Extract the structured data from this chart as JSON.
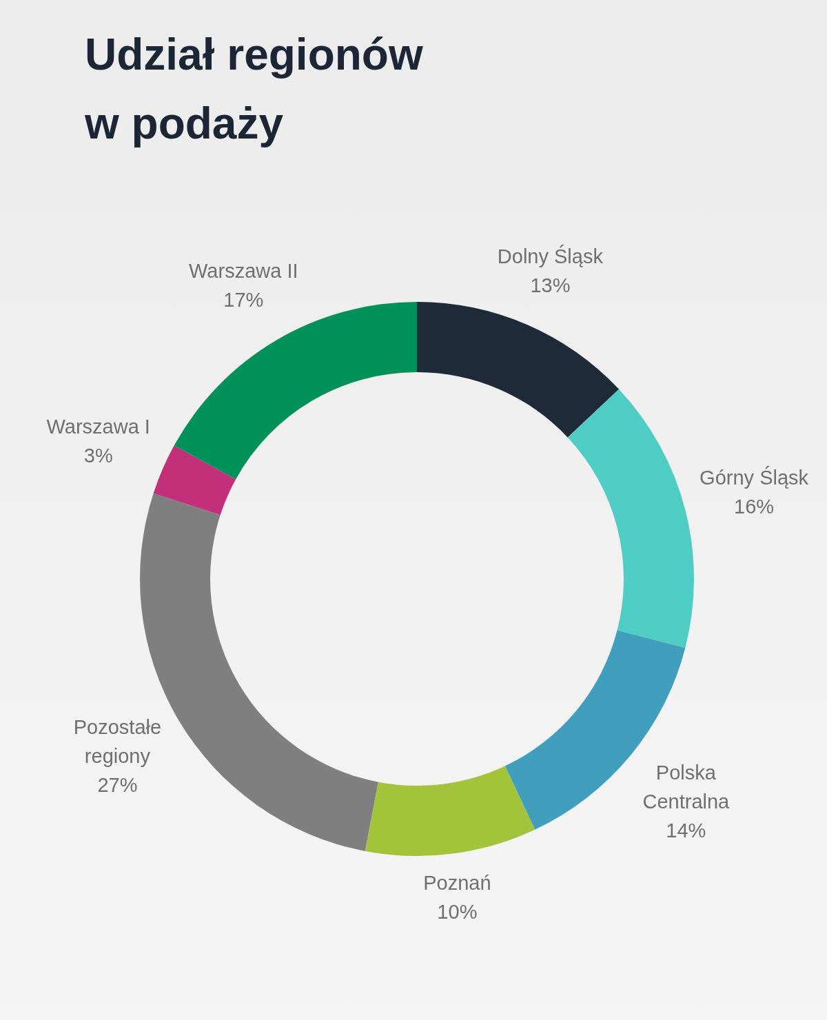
{
  "chart_data": {
    "type": "donut",
    "title": "Udział regionów w podaży",
    "categories": [
      "Dolny Śląsk",
      "Górny Śląsk",
      "Polska Centralna",
      "Poznań",
      "Pozostałe regiony",
      "Warszawa I",
      "Warszawa II"
    ],
    "values": [
      13,
      16,
      14,
      10,
      27,
      3,
      17
    ],
    "colors": [
      "#1e2a38",
      "#4fcdc5",
      "#419fbd",
      "#a2c33a",
      "#7f7f7f",
      "#c2307a",
      "#00915a"
    ],
    "value_labels": [
      "13%",
      "16%",
      "14%",
      "10%",
      "27%",
      "3%",
      "17%"
    ]
  }
}
